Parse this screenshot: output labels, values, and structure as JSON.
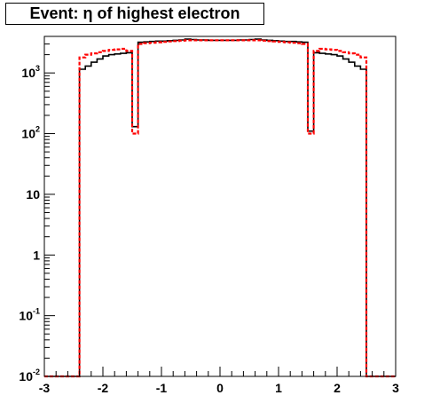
{
  "chart_data": {
    "type": "step",
    "title": "Event: η of highest electron",
    "xlabel": "",
    "ylabel": "",
    "xlim": [
      -3,
      3
    ],
    "ylim": [
      0.01,
      4000
    ],
    "log_y": true,
    "grid": false,
    "legend": "none",
    "x_tick_labels": [
      "-3",
      "-2",
      "-1",
      "0",
      "1",
      "2",
      "3"
    ],
    "y_tick_labels": [
      {
        "base": "10",
        "exp": "-2"
      },
      {
        "base": "10",
        "exp": "-1"
      },
      {
        "base": "1",
        "exp": ""
      },
      {
        "base": "10",
        "exp": ""
      },
      {
        "base": "10",
        "exp": "2"
      },
      {
        "base": "10",
        "exp": "3"
      }
    ],
    "bin_edges": [
      -3.0,
      -2.9,
      -2.8,
      -2.7,
      -2.6,
      -2.5,
      -2.4,
      -2.3,
      -2.2,
      -2.1,
      -2.0,
      -1.9,
      -1.8,
      -1.7,
      -1.6,
      -1.5,
      -1.4,
      -1.3,
      -1.2,
      -1.1,
      -1.0,
      -0.9,
      -0.8,
      -0.7,
      -0.6,
      -0.5,
      -0.4,
      -0.3,
      -0.2,
      -0.1,
      0.0,
      0.1,
      0.2,
      0.3,
      0.4,
      0.5,
      0.6,
      0.7,
      0.8,
      0.9,
      1.0,
      1.1,
      1.2,
      1.3,
      1.4,
      1.5,
      1.6,
      1.7,
      1.8,
      1.9,
      2.0,
      2.1,
      2.2,
      2.3,
      2.4,
      2.5,
      2.6,
      2.7,
      2.8,
      2.9,
      3.0
    ],
    "series": [
      {
        "color": "#000000",
        "style": "solid",
        "values": [
          0.01,
          0.01,
          0.01,
          0.01,
          0.01,
          0.01,
          1150,
          1300,
          1500,
          1700,
          1900,
          2000,
          2050,
          2100,
          2150,
          130,
          3200,
          3250,
          3300,
          3350,
          3350,
          3400,
          3450,
          3500,
          3600,
          3550,
          3500,
          3500,
          3450,
          3450,
          3450,
          3450,
          3450,
          3500,
          3500,
          3550,
          3600,
          3500,
          3450,
          3400,
          3350,
          3300,
          3300,
          3250,
          3200,
          110,
          2150,
          2100,
          2050,
          2000,
          1900,
          1700,
          1500,
          1300,
          1150,
          0.01,
          0.01,
          0.01,
          0.01,
          0.01
        ]
      },
      {
        "color": "#ff0000",
        "style": "dashed",
        "values": [
          0.01,
          0.01,
          0.01,
          0.01,
          0.01,
          0.01,
          1800,
          2000,
          2100,
          2200,
          2300,
          2400,
          2450,
          2500,
          2300,
          100,
          3000,
          3100,
          3150,
          3200,
          3250,
          3300,
          3350,
          3400,
          3450,
          3450,
          3450,
          3450,
          3450,
          3450,
          3450,
          3450,
          3450,
          3450,
          3450,
          3450,
          3450,
          3400,
          3350,
          3300,
          3250,
          3200,
          3150,
          3100,
          3000,
          100,
          2300,
          2500,
          2450,
          2400,
          2300,
          2200,
          2100,
          2000,
          1800,
          0.01,
          0.01,
          0.01,
          0.01,
          0.01
        ]
      }
    ]
  }
}
